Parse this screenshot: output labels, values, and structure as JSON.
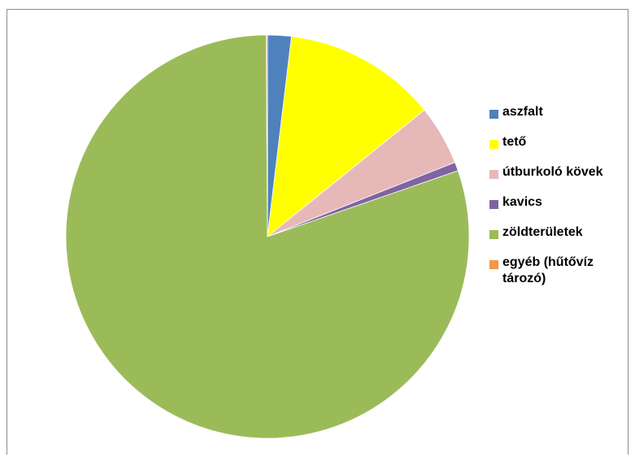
{
  "chart_data": {
    "type": "pie",
    "title": "",
    "start_angle_deg": 0,
    "direction": "clockwise",
    "series": [
      {
        "categories": [
          "aszfalt",
          "tető",
          "útburkoló kövek",
          "kavics",
          "zöldterületek",
          "egyéb (hűtővíz tározó)"
        ],
        "values": [
          1.9,
          12.3,
          4.8,
          0.7,
          80.2,
          0.1
        ],
        "colors": [
          "#4f81bd",
          "#ffff00",
          "#e6b9b8",
          "#8064a2",
          "#9bbb59",
          "#f79646"
        ]
      }
    ],
    "legend": {
      "position": "right",
      "entries": [
        "aszfalt",
        "tető",
        "útburkoló kövek",
        "kavics",
        "zöldterületek",
        "egyéb (hűtővíz tározó)"
      ]
    }
  }
}
